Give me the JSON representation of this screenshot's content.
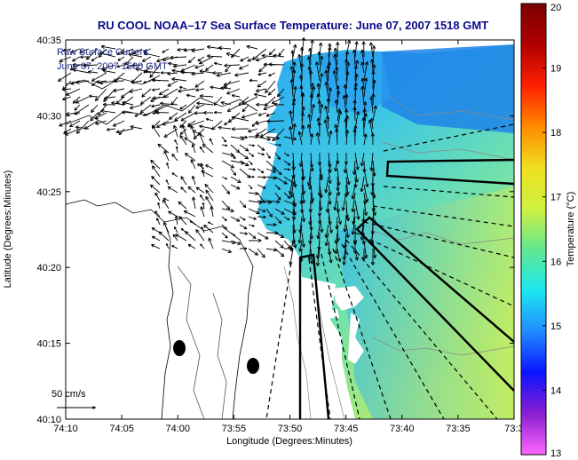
{
  "title": "RU COOL  NOAA–17  Sea Surface Temperature:  June 07, 2007 1518 GMT",
  "overlay": {
    "line1": "Raw Surface Current",
    "line2": "June 07, 2007 1500 GMT"
  },
  "scale_arrow_label": "50 cm/s",
  "axes": {
    "xlabel": "Longitude (Degrees:Minutes)",
    "ylabel": "Latitude (Degrees:Minutes)",
    "x_ticks": [
      "74:10",
      "74:05",
      "74:00",
      "73:55",
      "73:50",
      "73:45",
      "73:40",
      "73:35",
      "73:3"
    ],
    "y_ticks": [
      "40:35",
      "40:30",
      "40:25",
      "40:20",
      "40:15",
      "40:10"
    ]
  },
  "colorbar": {
    "label": "Temperature (°C)",
    "ticks": [
      "20",
      "19",
      "18",
      "17",
      "16",
      "15",
      "14",
      "13"
    ],
    "min": 13,
    "max": 20,
    "colors": [
      "#ff66ff",
      "#8a1fd0",
      "#0a14ff",
      "#1f8cff",
      "#1ee6f0",
      "#60e890",
      "#d0f040",
      "#f0e020",
      "#ff8a00",
      "#ff2000",
      "#b00000",
      "#7a0000"
    ]
  }
}
